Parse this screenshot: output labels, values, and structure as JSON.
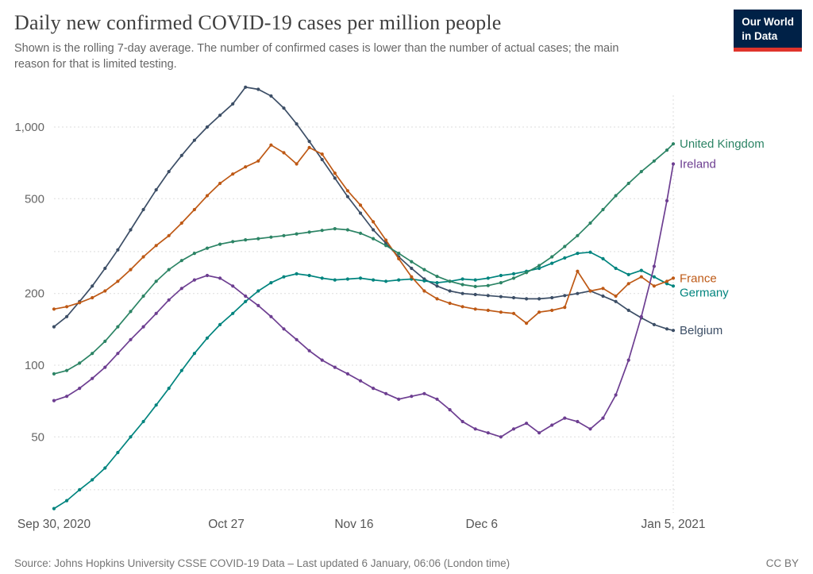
{
  "header": {
    "title": "Daily new confirmed COVID-19 cases per million people",
    "subtitle": "Shown is the rolling 7-day average. The number of confirmed cases is lower than the number of actual cases; the main reason for that is limited testing.",
    "logo": {
      "line1": "Our World",
      "line2": "in Data",
      "bg": "#002147",
      "accent": "#e0342c"
    }
  },
  "footer": {
    "source": "Source: Johns Hopkins University CSSE COVID-19 Data – Last updated 6 January, 06:06 (London time)",
    "license": "CC BY"
  },
  "chart_data": {
    "type": "line",
    "title": "Daily new confirmed COVID-19 cases per million people",
    "subtitle": "Rolling 7-day average of daily new confirmed COVID-19 cases per million people",
    "x_unit": "days since Sep 30, 2020",
    "x_ticks": [
      {
        "day": 0,
        "label": "Sep 30, 2020"
      },
      {
        "day": 27,
        "label": "Oct 27"
      },
      {
        "day": 47,
        "label": "Nov 16"
      },
      {
        "day": 67,
        "label": "Dec 6"
      },
      {
        "day": 97,
        "label": "Jan 5, 2021"
      }
    ],
    "y_scale": "log",
    "y_domain": [
      22,
      1600
    ],
    "y_gridlines": [
      30,
      50,
      100,
      200,
      300,
      500,
      1000
    ],
    "y_tick_labels": [
      {
        "value": 50,
        "label": "50"
      },
      {
        "value": 100,
        "label": "100"
      },
      {
        "value": 200,
        "label": "200"
      },
      {
        "value": 500,
        "label": "500"
      },
      {
        "value": 1000,
        "label": "1,000"
      }
    ],
    "grid": "dashed-horizontal",
    "legend_position": "right-end-labels",
    "days": [
      0,
      2,
      4,
      6,
      8,
      10,
      12,
      14,
      16,
      18,
      20,
      22,
      24,
      26,
      28,
      30,
      32,
      34,
      36,
      38,
      40,
      42,
      44,
      46,
      48,
      50,
      52,
      54,
      56,
      58,
      60,
      62,
      64,
      66,
      68,
      70,
      72,
      74,
      76,
      78,
      80,
      82,
      84,
      86,
      88,
      90,
      92,
      94,
      96,
      97
    ],
    "series": [
      {
        "name": "United Kingdom",
        "color": "#2C8465",
        "values": [
          92,
          95,
          102,
          112,
          126,
          145,
          168,
          195,
          225,
          252,
          275,
          295,
          310,
          322,
          330,
          336,
          340,
          345,
          350,
          356,
          362,
          368,
          374,
          370,
          358,
          340,
          318,
          295,
          272,
          252,
          236,
          225,
          218,
          214,
          216,
          222,
          232,
          245,
          262,
          285,
          315,
          350,
          395,
          450,
          515,
          580,
          650,
          720,
          800,
          850
        ]
      },
      {
        "name": "Ireland",
        "color": "#6D3E91",
        "values": [
          71,
          74,
          80,
          88,
          98,
          112,
          128,
          145,
          165,
          188,
          210,
          228,
          238,
          232,
          215,
          195,
          178,
          160,
          142,
          128,
          115,
          105,
          98,
          92,
          86,
          80,
          76,
          72,
          74,
          76,
          72,
          65,
          58,
          54,
          52,
          50,
          54,
          57,
          52,
          56,
          60,
          58,
          54,
          60,
          75,
          105,
          160,
          260,
          490,
          700
        ]
      },
      {
        "name": "France",
        "color": "#BE5915",
        "values": [
          172,
          176,
          183,
          192,
          205,
          225,
          252,
          285,
          318,
          350,
          395,
          450,
          515,
          580,
          635,
          680,
          720,
          840,
          780,
          700,
          820,
          770,
          640,
          540,
          470,
          400,
          335,
          280,
          235,
          205,
          190,
          182,
          176,
          172,
          170,
          167,
          165,
          150,
          167,
          170,
          175,
          248,
          205,
          210,
          195,
          220,
          235,
          215,
          225,
          232
        ]
      },
      {
        "name": "Germany",
        "color": "#00847E",
        "values": [
          25,
          27,
          30,
          33,
          37,
          43,
          50,
          58,
          68,
          80,
          95,
          112,
          130,
          148,
          165,
          185,
          205,
          222,
          235,
          242,
          238,
          232,
          228,
          230,
          232,
          228,
          225,
          228,
          230,
          226,
          222,
          225,
          230,
          228,
          232,
          238,
          242,
          248,
          255,
          268,
          282,
          295,
          298,
          280,
          255,
          240,
          250,
          235,
          220,
          215
        ]
      },
      {
        "name": "Belgium",
        "color": "#3C4E66",
        "values": [
          145,
          160,
          185,
          215,
          255,
          305,
          370,
          450,
          545,
          650,
          760,
          880,
          1000,
          1120,
          1250,
          1470,
          1440,
          1350,
          1200,
          1030,
          870,
          730,
          610,
          510,
          435,
          370,
          325,
          285,
          255,
          230,
          215,
          205,
          200,
          198,
          196,
          194,
          192,
          190,
          190,
          192,
          196,
          200,
          205,
          195,
          185,
          170,
          158,
          148,
          142,
          140
        ]
      }
    ]
  }
}
